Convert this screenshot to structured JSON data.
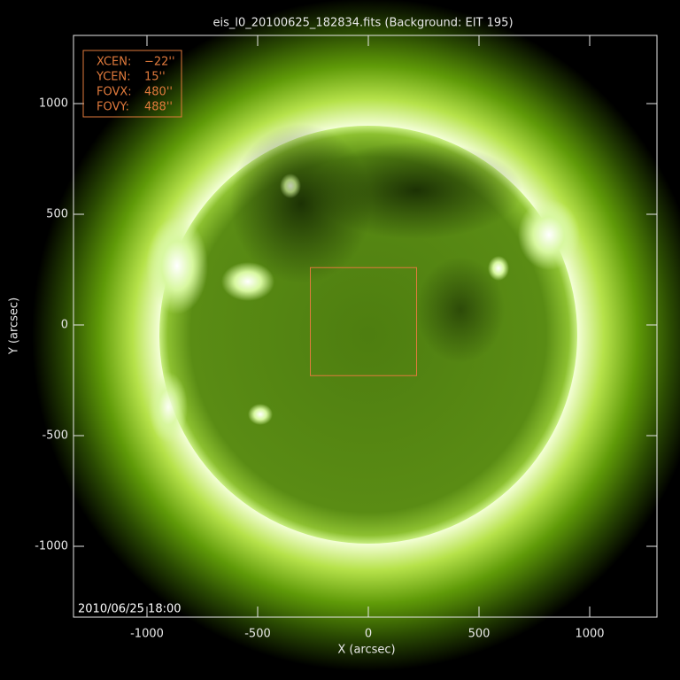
{
  "chart_data": {
    "type": "image",
    "title": "eis_l0_20100625_182834.fits  (Background: EIT 195)",
    "x_label": "X (arcsec)",
    "y_label": "Y (arcsec)",
    "xlim": [
      -1332,
      1304
    ],
    "ylim": [
      -1320,
      1308
    ],
    "xticks": [
      -1000,
      -500,
      0,
      500,
      1000
    ],
    "yticks": [
      -1000,
      -500,
      0,
      500,
      1000
    ],
    "timestamp": "2010/06/25 18:00",
    "fov": {
      "labels": [
        "XCEN:",
        "YCEN:",
        "FOVX:",
        "FOVY:"
      ],
      "values": [
        -22,
        15,
        480,
        488
      ],
      "value_labels": [
        "−22''",
        "15''",
        "480''",
        "488''"
      ],
      "color": "#e07a3c"
    }
  }
}
